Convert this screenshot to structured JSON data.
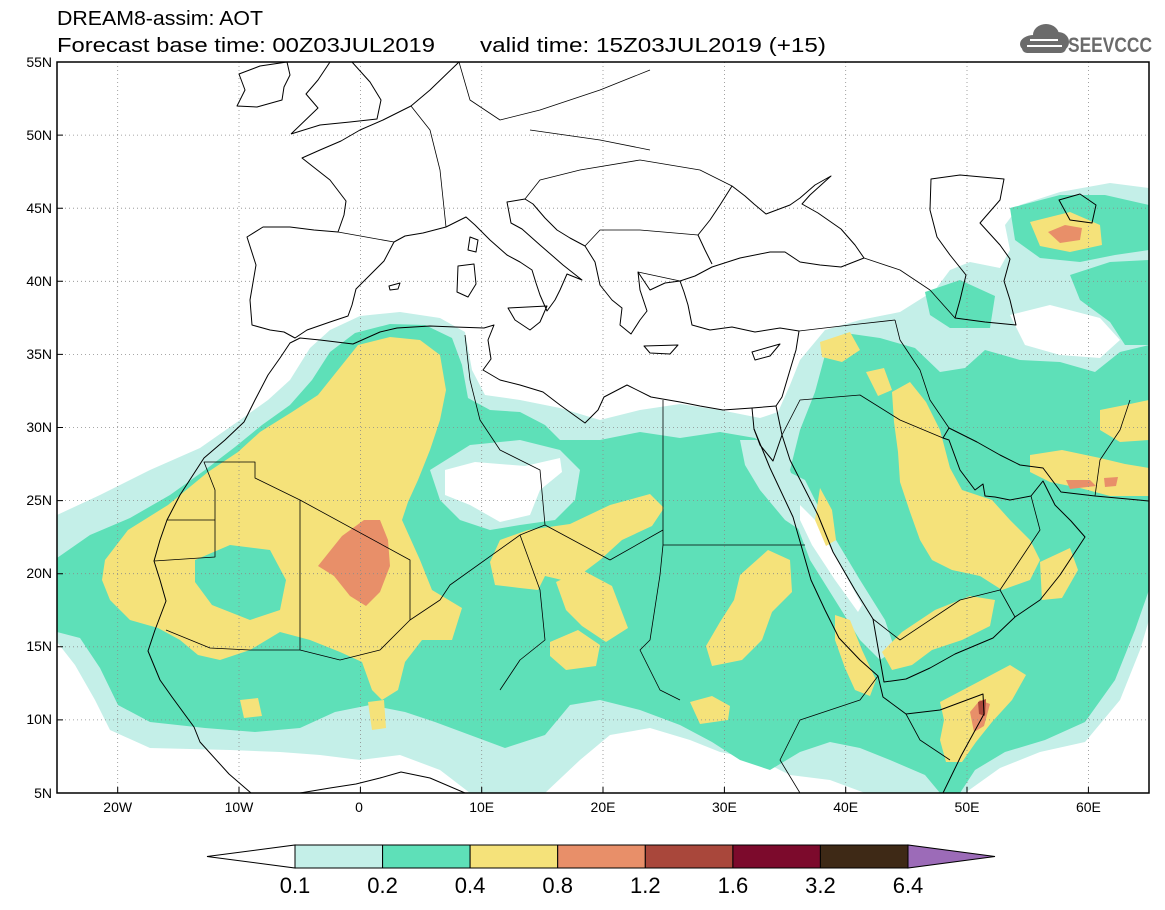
{
  "header": {
    "title": "DREAM8-assim: AOT",
    "base_time": "Forecast base time: 00Z03JUL2019",
    "valid_time": "valid time: 15Z03JUL2019 (+15)"
  },
  "logo": {
    "text": "SEEVCCC",
    "icon": "cloud-icon",
    "color": "#6b6b6b"
  },
  "map": {
    "lat_labels": [
      "55N",
      "50N",
      "45N",
      "40N",
      "35N",
      "30N",
      "25N",
      "20N",
      "15N",
      "10N",
      "5N"
    ],
    "lon_labels": [
      "20W",
      "10W",
      "0",
      "10E",
      "20E",
      "30E",
      "40E",
      "50E",
      "60E"
    ],
    "grid": "dotted",
    "coastline_color": "#000000"
  },
  "colorbar": {
    "levels": [
      "0.1",
      "0.2",
      "0.4",
      "0.8",
      "1.2",
      "1.6",
      "3.2",
      "6.4"
    ],
    "colors": [
      "#ffffff",
      "#c4efe8",
      "#5ee0b8",
      "#f5e27a",
      "#e88f69",
      "#a9473b",
      "#7c0a2c",
      "#3e2916",
      "#9c6bb8"
    ],
    "extend": "both"
  }
}
